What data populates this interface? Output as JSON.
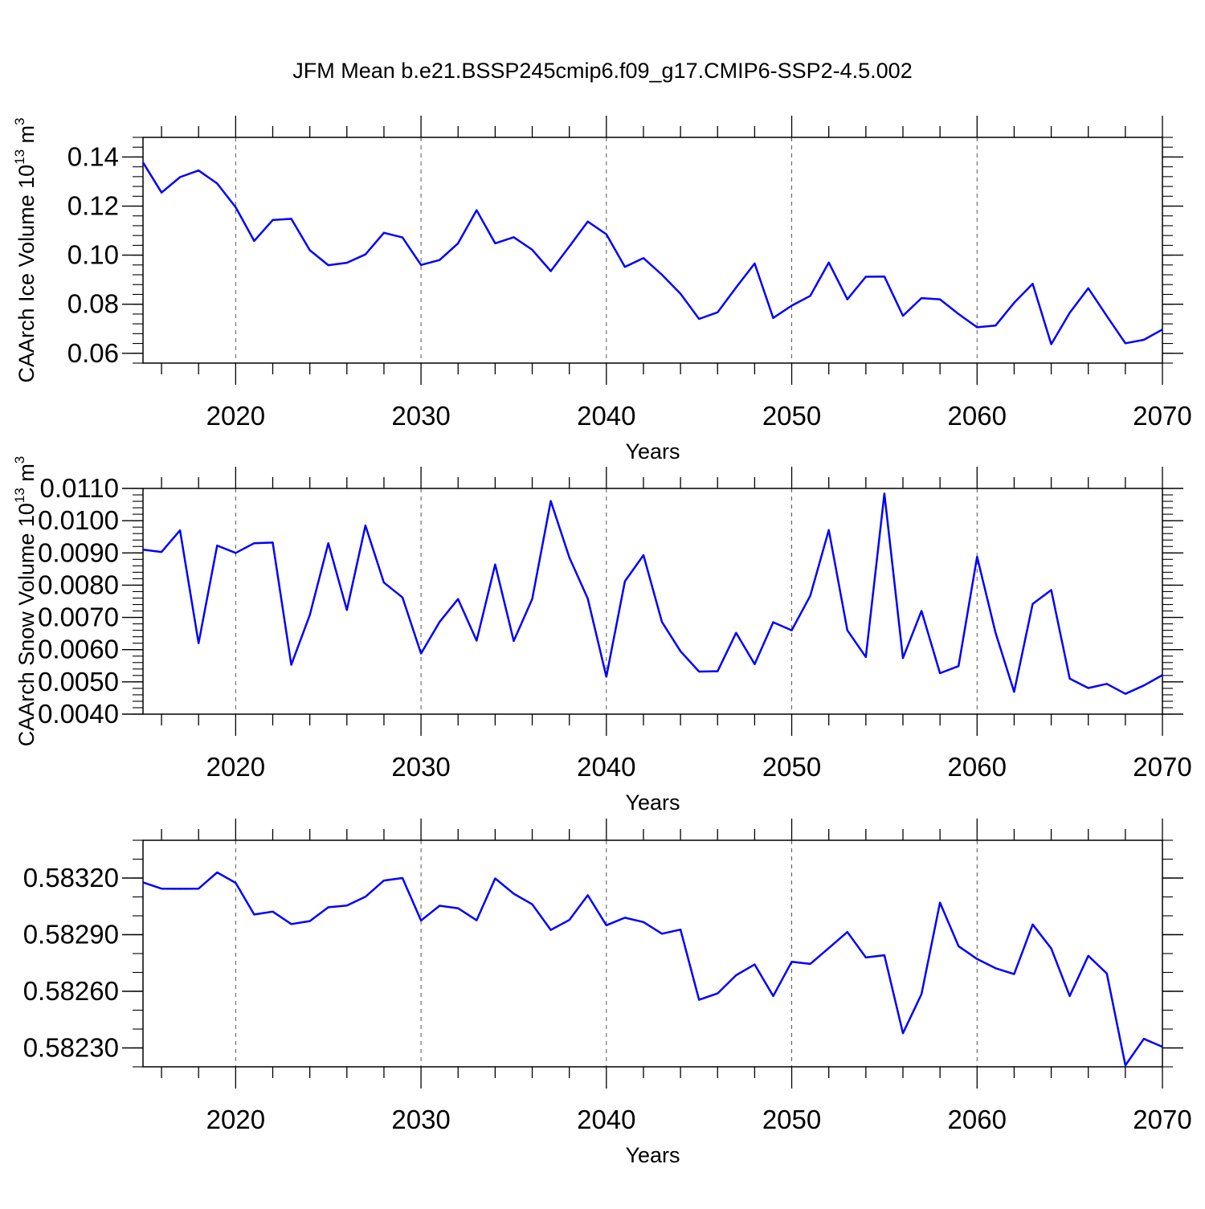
{
  "figure_title": "JFM Mean b.e21.BSSP245cmip6.f09_g17.CMIP6-SSP2-4.5.002",
  "line_color": "#0000ff",
  "chart_data": [
    {
      "type": "line",
      "ylabel_main": "CAArch Ice Volume 10",
      "ylabel_exp": "13",
      "ylabel_unit": " m",
      "ylabel_unit_exp": "3",
      "xlabel": "Years",
      "xlim": [
        2015,
        2070
      ],
      "ylim": [
        0.056,
        0.148
      ],
      "major_yticks": [
        0.06,
        0.08,
        0.1,
        0.12,
        0.14
      ],
      "ytick_labels": [
        "0.06",
        "0.08",
        "0.10",
        "0.12",
        "0.14"
      ],
      "minor_ystep": 0.004,
      "xticks": [
        2020,
        2030,
        2040,
        2050,
        2060,
        2070
      ],
      "xtick_labels": [
        "2020",
        "2030",
        "2040",
        "2050",
        "2060",
        "2070"
      ],
      "x": [
        2015,
        2016,
        2017,
        2018,
        2019,
        2020,
        2021,
        2022,
        2023,
        2024,
        2025,
        2026,
        2027,
        2028,
        2029,
        2030,
        2031,
        2032,
        2033,
        2034,
        2035,
        2036,
        2037,
        2038,
        2039,
        2040,
        2041,
        2042,
        2043,
        2044,
        2045,
        2046,
        2047,
        2048,
        2049,
        2050,
        2051,
        2052,
        2053,
        2054,
        2055,
        2056,
        2057,
        2058,
        2059,
        2060,
        2061,
        2062,
        2063,
        2064,
        2065,
        2066,
        2067,
        2068,
        2069,
        2070
      ],
      "values": [
        0.1378,
        0.1255,
        0.1318,
        0.1345,
        0.1292,
        0.1195,
        0.1058,
        0.1143,
        0.1148,
        0.102,
        0.0959,
        0.0969,
        0.1003,
        0.1091,
        0.1072,
        0.096,
        0.098,
        0.1048,
        0.1183,
        0.1048,
        0.1073,
        0.1022,
        0.0935,
        0.1035,
        0.1137,
        0.1085,
        0.0952,
        0.0988,
        0.092,
        0.0843,
        0.074,
        0.0767,
        0.0868,
        0.0966,
        0.0744,
        0.0794,
        0.0834,
        0.097,
        0.082,
        0.0912,
        0.0913,
        0.0753,
        0.0825,
        0.082,
        0.076,
        0.0706,
        0.0713,
        0.0806,
        0.0883,
        0.0637,
        0.0765,
        0.0865,
        0.0752,
        0.0641,
        0.0655,
        0.0697
      ]
    },
    {
      "type": "line",
      "ylabel_main": "CAArch Snow Volume 10",
      "ylabel_exp": "13",
      "ylabel_unit": " m",
      "ylabel_unit_exp": "3",
      "xlabel": "Years",
      "xlim": [
        2015,
        2070
      ],
      "ylim": [
        0.004,
        0.011
      ],
      "major_yticks": [
        0.004,
        0.005,
        0.006,
        0.007,
        0.008,
        0.009,
        0.01,
        0.011
      ],
      "ytick_labels": [
        "0.0040",
        "0.0050",
        "0.0060",
        "0.0070",
        "0.0080",
        "0.0090",
        "0.0100",
        "0.0110"
      ],
      "minor_ystep": 0.0002,
      "xticks": [
        2020,
        2030,
        2040,
        2050,
        2060,
        2070
      ],
      "xtick_labels": [
        "2020",
        "2030",
        "2040",
        "2050",
        "2060",
        "2070"
      ],
      "x": [
        2015,
        2016,
        2017,
        2018,
        2019,
        2020,
        2021,
        2022,
        2023,
        2024,
        2025,
        2026,
        2027,
        2028,
        2029,
        2030,
        2031,
        2032,
        2033,
        2034,
        2035,
        2036,
        2037,
        2038,
        2039,
        2040,
        2041,
        2042,
        2043,
        2044,
        2045,
        2046,
        2047,
        2048,
        2049,
        2050,
        2051,
        2052,
        2053,
        2054,
        2055,
        2056,
        2057,
        2058,
        2059,
        2060,
        2061,
        2062,
        2063,
        2064,
        2065,
        2066,
        2067,
        2068,
        2069,
        2070
      ],
      "values": [
        0.0091,
        0.00903,
        0.0097,
        0.0062,
        0.00923,
        0.009,
        0.0093,
        0.00932,
        0.00553,
        0.00708,
        0.0093,
        0.00723,
        0.00985,
        0.00808,
        0.00762,
        0.00588,
        0.00686,
        0.00757,
        0.00628,
        0.00864,
        0.00627,
        0.00757,
        0.01061,
        0.00886,
        0.00758,
        0.00516,
        0.00812,
        0.00893,
        0.00686,
        0.00595,
        0.00532,
        0.00533,
        0.00652,
        0.00555,
        0.00685,
        0.0066,
        0.00767,
        0.00971,
        0.0066,
        0.00577,
        0.01084,
        0.00574,
        0.0072,
        0.00527,
        0.00549,
        0.00888,
        0.00652,
        0.00469,
        0.00742,
        0.00785,
        0.0051,
        0.00481,
        0.00494,
        0.00463,
        0.00489,
        0.00521
      ]
    },
    {
      "type": "line",
      "xlabel": "Years",
      "xlim": [
        2015,
        2070
      ],
      "ylim": [
        0.5822,
        0.5834
      ],
      "major_yticks": [
        0.5823,
        0.5826,
        0.5829,
        0.5832
      ],
      "ytick_labels": [
        "0.58230",
        "0.58260",
        "0.58290",
        "0.58320"
      ],
      "minor_ystep": 0.0001,
      "xticks": [
        2020,
        2030,
        2040,
        2050,
        2060,
        2070
      ],
      "xtick_labels": [
        "2020",
        "2030",
        "2040",
        "2050",
        "2060",
        "2070"
      ],
      "x": [
        2015,
        2016,
        2017,
        2018,
        2019,
        2020,
        2021,
        2022,
        2023,
        2024,
        2025,
        2026,
        2027,
        2028,
        2029,
        2030,
        2031,
        2032,
        2033,
        2034,
        2035,
        2036,
        2037,
        2038,
        2039,
        2040,
        2041,
        2042,
        2043,
        2044,
        2045,
        2046,
        2047,
        2048,
        2049,
        2050,
        2051,
        2052,
        2053,
        2054,
        2055,
        2056,
        2057,
        2058,
        2059,
        2060,
        2061,
        2062,
        2063,
        2064,
        2065,
        2066,
        2067,
        2068,
        2069,
        2070
      ],
      "values": [
        0.583177,
        0.583144,
        0.583143,
        0.583144,
        0.58323,
        0.583174,
        0.583007,
        0.583022,
        0.582956,
        0.582972,
        0.583045,
        0.583054,
        0.583101,
        0.583187,
        0.5832,
        0.582975,
        0.583053,
        0.58304,
        0.582976,
        0.583198,
        0.583117,
        0.583061,
        0.582925,
        0.582978,
        0.583109,
        0.58295,
        0.58299,
        0.582967,
        0.582905,
        0.582927,
        0.582555,
        0.582589,
        0.582685,
        0.582742,
        0.582575,
        0.582756,
        0.582745,
        0.582829,
        0.582914,
        0.582779,
        0.582791,
        0.582378,
        0.582585,
        0.58307,
        0.582839,
        0.582771,
        0.582722,
        0.582691,
        0.582954,
        0.582827,
        0.582575,
        0.582788,
        0.582694,
        0.582208,
        0.582348,
        0.582306
      ]
    }
  ]
}
